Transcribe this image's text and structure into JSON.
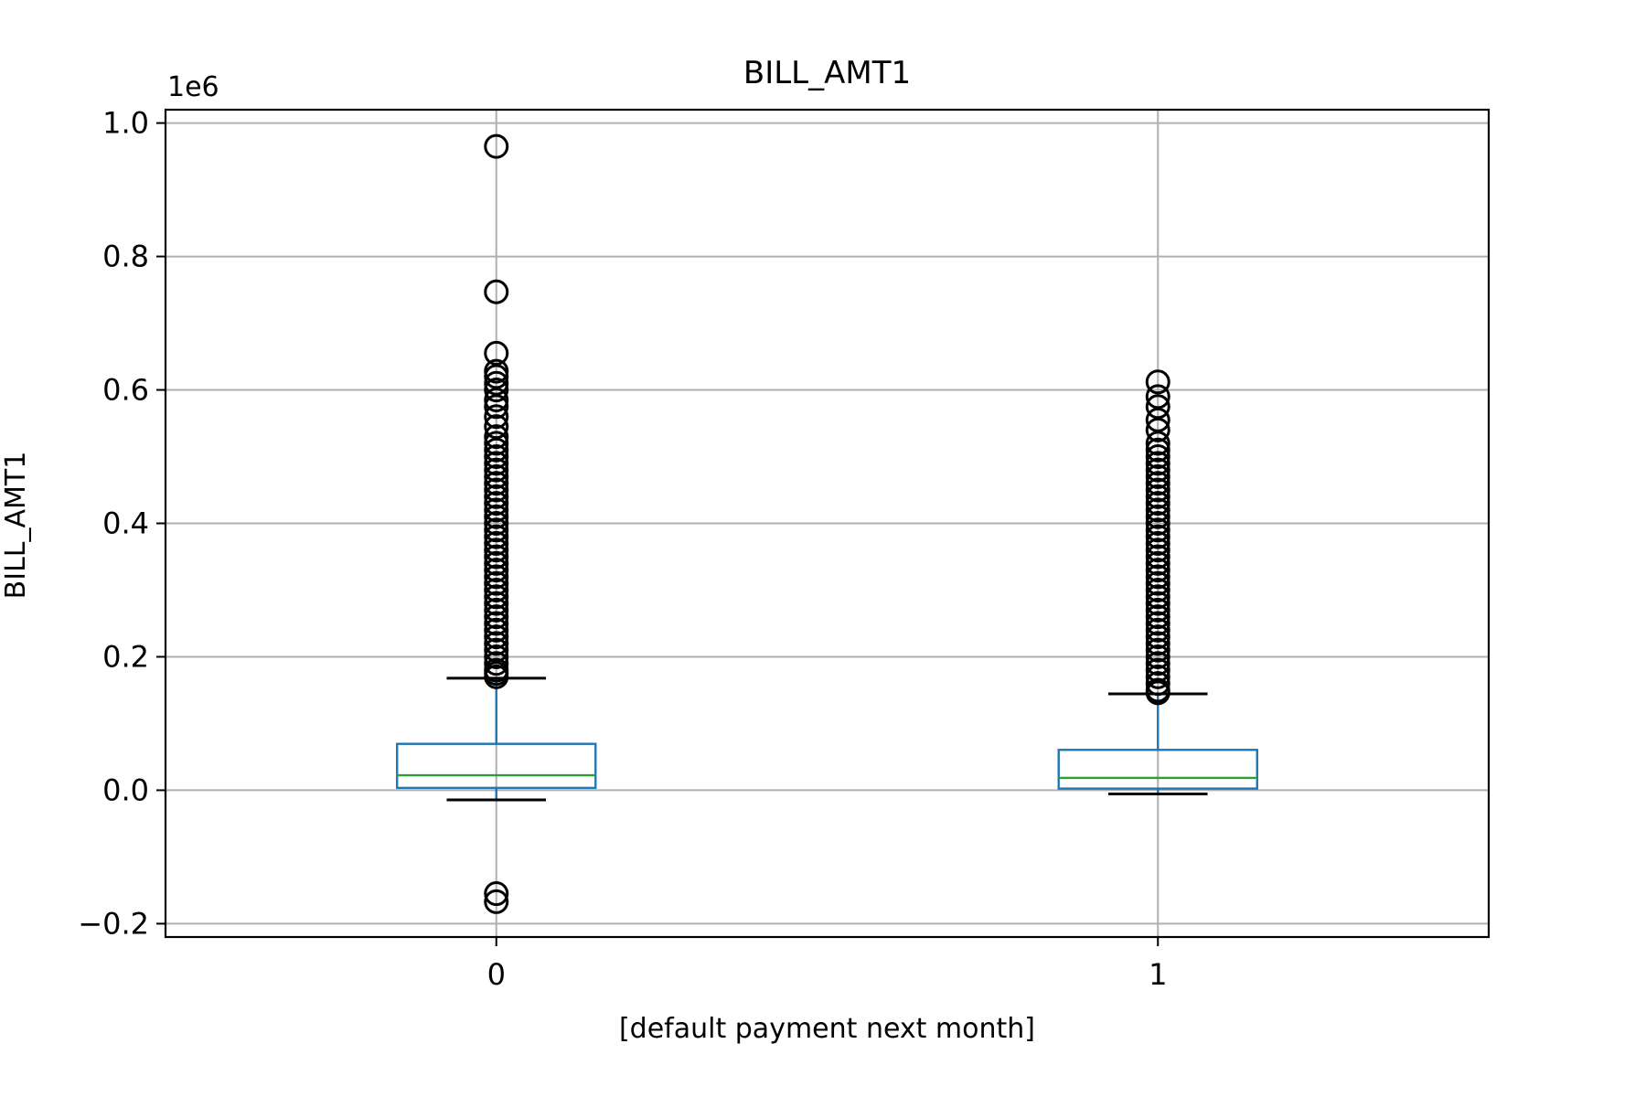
{
  "chart_data": {
    "type": "box",
    "title": "BILL_AMT1",
    "xlabel": "[default payment next month]",
    "ylabel": "BILL_AMT1",
    "y_offset_label": "1e6",
    "y_scale": 1000000,
    "ylim": [
      -0.22,
      1.02
    ],
    "y_ticks": [
      -0.2,
      0.0,
      0.2,
      0.4,
      0.6,
      0.8,
      1.0
    ],
    "y_tick_labels": [
      "−0.2",
      "0.0",
      "0.2",
      "0.4",
      "0.6",
      "0.8",
      "1.0"
    ],
    "x_ticks": [
      1,
      2
    ],
    "x_tick_labels": [
      "0",
      "1"
    ],
    "xlim": [
      0.5,
      2.5
    ],
    "grid": true,
    "box_color": "#1f77b4",
    "median_color": "#2ca02c",
    "flier_color": "#000000",
    "boxes": [
      {
        "category": "0",
        "whisker_low": -0.0145,
        "q1": 0.0035,
        "median": 0.0225,
        "q3": 0.0695,
        "whisker_high": 0.168,
        "fliers": [
          0.17,
          0.175,
          0.18,
          0.19,
          0.2,
          0.21,
          0.22,
          0.23,
          0.24,
          0.25,
          0.26,
          0.27,
          0.28,
          0.29,
          0.3,
          0.31,
          0.32,
          0.33,
          0.34,
          0.35,
          0.36,
          0.37,
          0.38,
          0.39,
          0.4,
          0.41,
          0.42,
          0.43,
          0.44,
          0.45,
          0.46,
          0.47,
          0.48,
          0.49,
          0.5,
          0.51,
          0.52,
          0.53,
          0.545,
          0.56,
          0.575,
          0.585,
          0.6,
          0.61,
          0.62,
          0.628,
          0.655,
          0.747,
          0.965,
          -0.155,
          -0.167
        ]
      },
      {
        "category": "1",
        "whisker_low": -0.0055,
        "q1": 0.0025,
        "median": 0.0185,
        "q3": 0.0605,
        "whisker_high": 0.1445,
        "fliers": [
          0.146,
          0.15,
          0.16,
          0.17,
          0.18,
          0.19,
          0.2,
          0.21,
          0.22,
          0.23,
          0.24,
          0.25,
          0.26,
          0.27,
          0.28,
          0.29,
          0.3,
          0.31,
          0.32,
          0.33,
          0.34,
          0.35,
          0.36,
          0.37,
          0.38,
          0.39,
          0.4,
          0.41,
          0.42,
          0.43,
          0.44,
          0.45,
          0.46,
          0.47,
          0.48,
          0.49,
          0.5,
          0.51,
          0.52,
          0.54,
          0.555,
          0.575,
          0.59,
          0.612
        ]
      }
    ]
  }
}
